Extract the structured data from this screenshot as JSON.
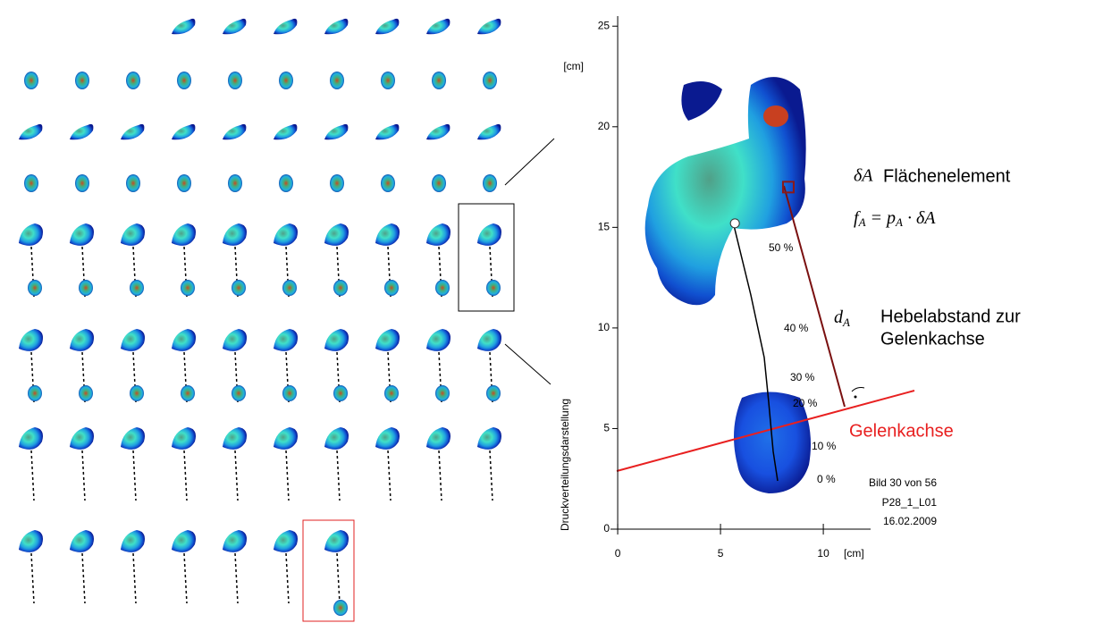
{
  "chart_data": {
    "type": "scatter",
    "xlabel": "[cm]",
    "ylabel": "Druckverteilungsdarstellung",
    "yunit": "[cm]",
    "xlim": [
      -0.35,
      12.3
    ],
    "ylim": [
      0,
      25.5
    ],
    "xticks": [
      0,
      5,
      10
    ],
    "yticks": [
      0,
      5,
      10,
      15,
      20,
      25
    ],
    "x": [
      5.7,
      8.3
    ],
    "values": [
      15.2,
      17.0
    ],
    "markers": [
      "circle",
      "square"
    ],
    "colors": [
      "#ffffff",
      "#8b1a1a"
    ],
    "percent_labels": [
      "50 %",
      "40 %",
      "30 %",
      "20 %",
      "10 %",
      "0 %"
    ],
    "element_symbol": "δA",
    "element_label": "Flächenelement",
    "formula": [
      "f",
      "A",
      " = p",
      "A",
      " · δA"
    ],
    "lever_symbol": [
      "d",
      "A"
    ],
    "lever_label": [
      "Hebelabstand zur",
      "Gelenkachse"
    ],
    "axis_label": "Gelenkachse",
    "info": [
      "Bild 30 von 56",
      "P28_1_L01",
      "16.02.2009"
    ]
  }
}
